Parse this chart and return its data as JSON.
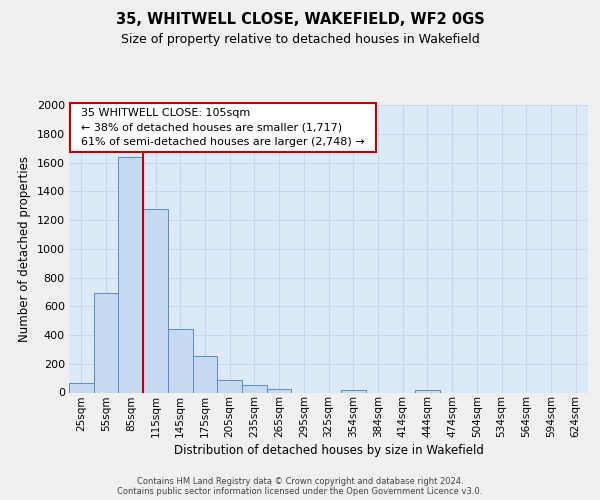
{
  "title": "35, WHITWELL CLOSE, WAKEFIELD, WF2 0GS",
  "subtitle": "Size of property relative to detached houses in Wakefield",
  "xlabel": "Distribution of detached houses by size in Wakefield",
  "ylabel": "Number of detached properties",
  "bar_categories": [
    "25sqm",
    "55sqm",
    "85sqm",
    "115sqm",
    "145sqm",
    "175sqm",
    "205sqm",
    "235sqm",
    "265sqm",
    "295sqm",
    "325sqm",
    "354sqm",
    "384sqm",
    "414sqm",
    "444sqm",
    "474sqm",
    "504sqm",
    "534sqm",
    "564sqm",
    "594sqm",
    "624sqm"
  ],
  "bar_values": [
    65,
    695,
    1635,
    1280,
    440,
    252,
    90,
    52,
    25,
    0,
    0,
    15,
    0,
    0,
    15,
    0,
    0,
    0,
    0,
    0,
    0
  ],
  "bar_color": "#c5d9f0",
  "bar_edge_color": "#5b8cc8",
  "vline_x": 2.5,
  "vline_color": "#c00000",
  "annotation_title": "35 WHITWELL CLOSE: 105sqm",
  "annotation_line1": "← 38% of detached houses are smaller (1,717)",
  "annotation_line2": "61% of semi-detached houses are larger (2,748) →",
  "annotation_box_edge": "#c00000",
  "ylim_max": 2000,
  "ytick_step": 200,
  "grid_color": "#c8d8ec",
  "plot_bg_color": "#dce9f8",
  "fig_bg_color": "#f0f0f0",
  "footer_line1": "Contains HM Land Registry data © Crown copyright and database right 2024.",
  "footer_line2": "Contains public sector information licensed under the Open Government Licence v3.0."
}
